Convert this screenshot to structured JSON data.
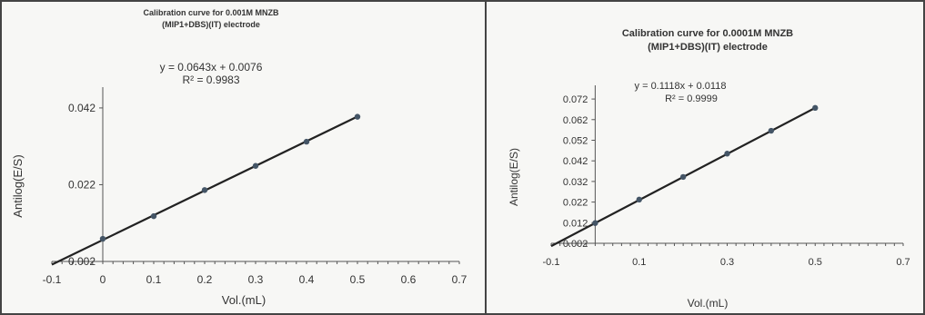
{
  "chart_data": [
    {
      "type": "scatter",
      "title": "Calibration curve for 0.001M MNZB",
      "subtitle": "(MIP1+DBS)(IT) electrode",
      "equation": "y = 0.0643x + 0.0076",
      "r_squared": "R² = 0.9983",
      "xlabel": "Vol.(mL)",
      "ylabel": "Antilog(E/S)",
      "xlim": [
        -0.1,
        0.7
      ],
      "ylim": [
        0.002,
        0.046
      ],
      "x_ticks": [
        -0.1,
        0,
        0.1,
        0.2,
        0.3,
        0.4,
        0.5,
        0.6,
        0.7
      ],
      "x_tick_labels": [
        "-0.1",
        "0",
        "0.1",
        "0.2",
        "0.3",
        "0.4",
        "0.5",
        "0.6",
        "0.7"
      ],
      "y_ticks": [
        0.002,
        0.022,
        0.042
      ],
      "y_tick_labels": [
        "0.002",
        "0.022",
        "0.042"
      ],
      "trendline": {
        "slope": 0.0643,
        "intercept": 0.0076
      },
      "series": [
        {
          "x": [
            0,
            0.1,
            0.2,
            0.3,
            0.4,
            0.5
          ],
          "y": [
            0.0079,
            0.0138,
            0.0206,
            0.0269,
            0.0332,
            0.0397
          ]
        }
      ],
      "grid": false
    },
    {
      "type": "scatter",
      "title": "Calibration curve for 0.0001M MNZB",
      "subtitle": "(MIP1+DBS)(IT) electrode",
      "equation": "y = 0.1118x + 0.0118",
      "r_squared": "R² = 0.9999",
      "xlabel": "Vol.(mL)",
      "ylabel": "Antilog(E/S)",
      "xlim": [
        -0.1,
        0.7
      ],
      "ylim": [
        0.002,
        0.076
      ],
      "x_ticks": [
        -0.1,
        0.1,
        0.3,
        0.5,
        0.7
      ],
      "x_tick_labels": [
        "-0.1",
        "0.1",
        "0.3",
        "0.5",
        "0.7"
      ],
      "y_ticks": [
        0.002,
        0.012,
        0.022,
        0.032,
        0.042,
        0.052,
        0.062,
        0.072
      ],
      "y_tick_labels": [
        "0.002",
        "0.012",
        "0.022",
        "0.032",
        "0.042",
        "0.052",
        "0.062",
        "0.072"
      ],
      "trendline": {
        "slope": 0.1118,
        "intercept": 0.0118
      },
      "series": [
        {
          "x": [
            0,
            0.1,
            0.2,
            0.3,
            0.4,
            0.5
          ],
          "y": [
            0.0118,
            0.0232,
            0.0342,
            0.0455,
            0.0566,
            0.0677
          ]
        }
      ],
      "grid": false
    }
  ]
}
